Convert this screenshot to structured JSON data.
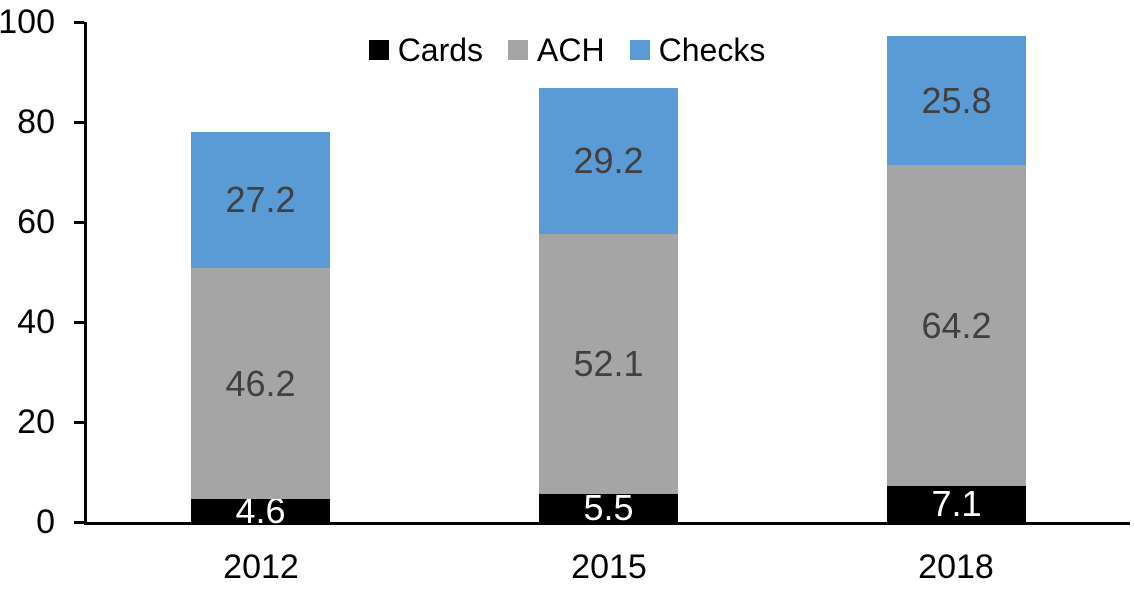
{
  "chart_data": {
    "type": "bar",
    "stacked": true,
    "title": "",
    "categories": [
      "2012",
      "2015",
      "2018"
    ],
    "series": [
      {
        "name": "Cards",
        "color": "#000000",
        "label_color": "#ffffff",
        "values": [
          4.6,
          5.5,
          7.1
        ],
        "labels": [
          "4.6",
          "5.5",
          "7.1"
        ]
      },
      {
        "name": "ACH",
        "color": "#a5a5a5",
        "label_color": "#404040",
        "values": [
          46.2,
          52.1,
          64.2
        ],
        "labels": [
          "46.2",
          "52.1",
          "64.2"
        ]
      },
      {
        "name": "Checks",
        "color": "#5b9bd5",
        "label_color": "#404040",
        "values": [
          27.2,
          29.2,
          25.8
        ],
        "labels": [
          "27.2",
          "29.2",
          "25.8"
        ]
      }
    ],
    "y_axis": {
      "min": 0,
      "max": 100,
      "tick_step": 20,
      "tick_labels": [
        "0",
        "20",
        "40",
        "60",
        "80",
        "100"
      ]
    },
    "legend": {
      "position": "top",
      "entries": [
        "Cards",
        "ACH",
        "Checks"
      ]
    },
    "grid": false,
    "axis_color": "#000000",
    "background": "#ffffff",
    "bar_width_fraction": 0.4
  }
}
